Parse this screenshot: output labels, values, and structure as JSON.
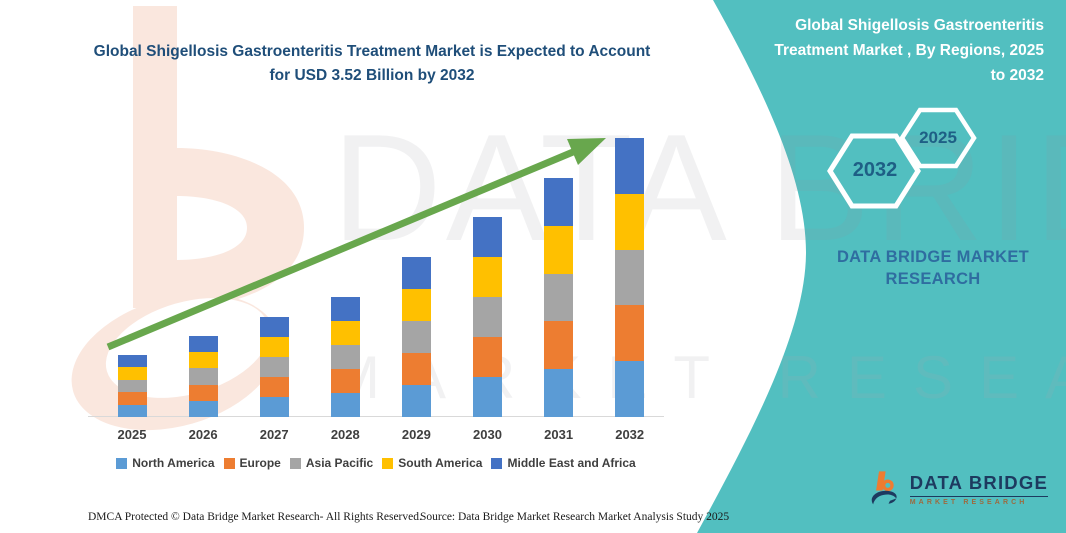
{
  "left_title": {
    "text": "Global Shigellosis Gastroenteritis Treatment Market is Expected to Account for USD 3.52 Billion by 2032"
  },
  "right_panel": {
    "accent_color": "#52BFC0",
    "title_lines": [
      "Global Shigellosis Gastroenteritis",
      "Treatment Market , By Regions, 2025",
      "to 2032"
    ],
    "hexagon_back_year": "2032",
    "hexagon_front_year": "2025",
    "brand_text": "DATA BRIDGE MARKET RESEARCH"
  },
  "watermarks": {
    "line1": "DATA BRIDGE",
    "line2": "MARKET RESEARCH"
  },
  "logo": {
    "title": "DATA BRIDGE",
    "subtitle": "MARKET RESEARCH",
    "orange": "#EE7C31",
    "navy": "#1D3A5F"
  },
  "footer": {
    "dmca": "DMCA Protected © Data Bridge Market Research- All Rights Reserved.",
    "source": "Source: Data Bridge Market Research Market Analysis Study 2025"
  },
  "chart_data": {
    "type": "bar",
    "stacked": true,
    "title": "Global Shigellosis Gastroenteritis Treatment Market is Expected to Account for USD 3.52 Billion by 2032",
    "categories": [
      "2025",
      "2026",
      "2027",
      "2028",
      "2029",
      "2030",
      "2031",
      "2032"
    ],
    "series": [
      {
        "name": "North America",
        "color": "#5B9BD5",
        "values": [
          12.4,
          16.2,
          20,
          24,
          32,
          40,
          47.8,
          55.8
        ]
      },
      {
        "name": "Europe",
        "color": "#ED7D31",
        "values": [
          12.4,
          16.2,
          20,
          24,
          32,
          40,
          47.8,
          55.8
        ]
      },
      {
        "name": "Asia Pacific",
        "color": "#A5A5A5",
        "values": [
          12.4,
          16.2,
          20,
          24,
          32,
          40,
          47.8,
          55.8
        ]
      },
      {
        "name": "South America",
        "color": "#FFC000",
        "values": [
          12.4,
          16.2,
          20,
          24,
          32,
          40,
          47.8,
          55.8
        ]
      },
      {
        "name": "Middle East and Africa",
        "color": "#4472C4",
        "values": [
          12.4,
          16.2,
          20,
          24,
          32,
          40,
          47.8,
          55.8
        ]
      }
    ],
    "stack_totals": [
      62,
      81,
      100,
      120,
      160,
      200,
      239,
      279
    ],
    "units": "relative height (no value axis shown in figure)",
    "highlight_value": "USD 3.52 Billion by 2032",
    "legend_position": "bottom",
    "grid": false,
    "trend_arrow_color": "#68A74D"
  }
}
